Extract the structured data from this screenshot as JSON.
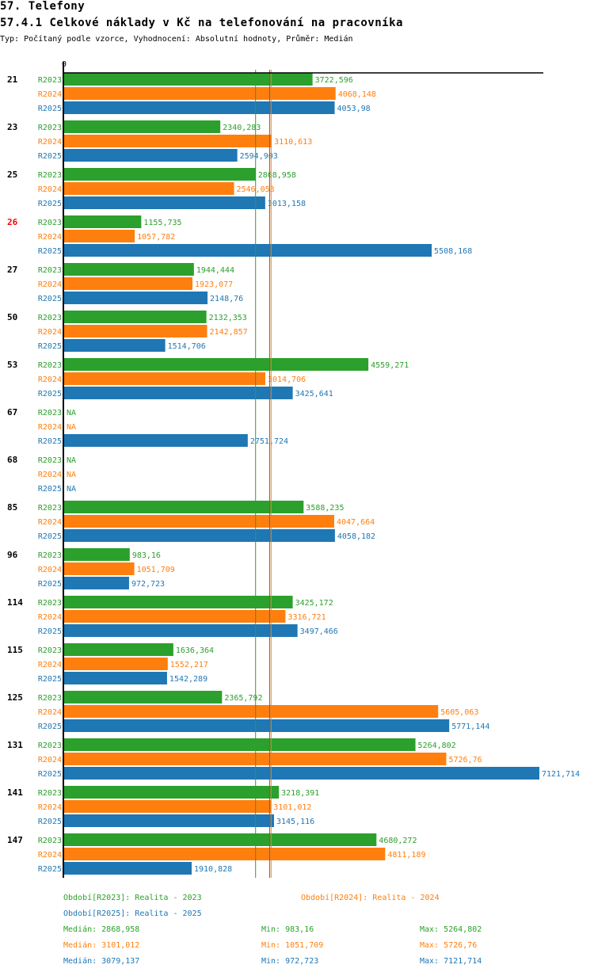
{
  "header": {
    "section": "57. Telefony",
    "title": "57.4.1 Celkové náklady v Kč na telefonování na pracovníka",
    "subtitle": "Typ: Počítaný podle vzorce, Vyhodnocení: Absolutní hodnoty, Průměr: Medián"
  },
  "chart_data": {
    "type": "bar",
    "orientation": "horizontal",
    "title": "57.4.1 Celkové náklady v Kč na telefonování na pracovníka",
    "xlabel": "",
    "ylabel": "",
    "x_tick_labels": [
      "0"
    ],
    "xlim": [
      0,
      7121.714
    ],
    "grid": false,
    "legend_position": "bottom",
    "series_colors": {
      "R2023": "#2ca02c",
      "R2024": "#ff7f0e",
      "R2025": "#1f77b4"
    },
    "series_names": [
      "R2023",
      "R2024",
      "R2025"
    ],
    "categories": [
      {
        "label": "21",
        "highlight": false,
        "values": {
          "R2023": 3722.596,
          "R2024": 4068.148,
          "R2025": 4053.98
        },
        "labels": {
          "R2023": "3722,596",
          "R2024": "4068,148",
          "R2025": "4053,98"
        }
      },
      {
        "label": "23",
        "highlight": false,
        "values": {
          "R2023": 2340.283,
          "R2024": 3110.613,
          "R2025": 2594.903
        },
        "labels": {
          "R2023": "2340,283",
          "R2024": "3110,613",
          "R2025": "2594,903"
        }
      },
      {
        "label": "25",
        "highlight": false,
        "values": {
          "R2023": 2868.958,
          "R2024": 2546.053,
          "R2025": 3013.158
        },
        "labels": {
          "R2023": "2868,958",
          "R2024": "2546,053",
          "R2025": "3013,158"
        }
      },
      {
        "label": "26",
        "highlight": true,
        "values": {
          "R2023": 1155.735,
          "R2024": 1057.782,
          "R2025": 5508.168
        },
        "labels": {
          "R2023": "1155,735",
          "R2024": "1057,782",
          "R2025": "5508,168"
        }
      },
      {
        "label": "27",
        "highlight": false,
        "values": {
          "R2023": 1944.444,
          "R2024": 1923.077,
          "R2025": 2148.76
        },
        "labels": {
          "R2023": "1944,444",
          "R2024": "1923,077",
          "R2025": "2148,76"
        }
      },
      {
        "label": "50",
        "highlight": false,
        "values": {
          "R2023": 2132.353,
          "R2024": 2142.857,
          "R2025": 1514.706
        },
        "labels": {
          "R2023": "2132,353",
          "R2024": "2142,857",
          "R2025": "1514,706"
        }
      },
      {
        "label": "53",
        "highlight": false,
        "values": {
          "R2023": 4559.271,
          "R2024": 3014.706,
          "R2025": 3425.641
        },
        "labels": {
          "R2023": "4559,271",
          "R2024": "3014,706",
          "R2025": "3425,641"
        }
      },
      {
        "label": "67",
        "highlight": false,
        "values": {
          "R2023": null,
          "R2024": null,
          "R2025": 2751.724
        },
        "labels": {
          "R2023": "NA",
          "R2024": "NA",
          "R2025": "2751,724"
        }
      },
      {
        "label": "68",
        "highlight": false,
        "values": {
          "R2023": null,
          "R2024": null,
          "R2025": null
        },
        "labels": {
          "R2023": "NA",
          "R2024": "NA",
          "R2025": "NA"
        }
      },
      {
        "label": "85",
        "highlight": false,
        "values": {
          "R2023": 3588.235,
          "R2024": 4047.664,
          "R2025": 4058.182
        },
        "labels": {
          "R2023": "3588,235",
          "R2024": "4047,664",
          "R2025": "4058,182"
        }
      },
      {
        "label": "96",
        "highlight": false,
        "values": {
          "R2023": 983.16,
          "R2024": 1051.709,
          "R2025": 972.723
        },
        "labels": {
          "R2023": "983,16",
          "R2024": "1051,709",
          "R2025": "972,723"
        }
      },
      {
        "label": "114",
        "highlight": false,
        "values": {
          "R2023": 3425.172,
          "R2024": 3316.721,
          "R2025": 3497.466
        },
        "labels": {
          "R2023": "3425,172",
          "R2024": "3316,721",
          "R2025": "3497,466"
        }
      },
      {
        "label": "115",
        "highlight": false,
        "values": {
          "R2023": 1636.364,
          "R2024": 1552.217,
          "R2025": 1542.289
        },
        "labels": {
          "R2023": "1636,364",
          "R2024": "1552,217",
          "R2025": "1542,289"
        }
      },
      {
        "label": "125",
        "highlight": false,
        "values": {
          "R2023": 2365.792,
          "R2024": 5605.063,
          "R2025": 5771.144
        },
        "labels": {
          "R2023": "2365,792",
          "R2024": "5605,063",
          "R2025": "5771,144"
        }
      },
      {
        "label": "131",
        "highlight": false,
        "values": {
          "R2023": 5264.802,
          "R2024": 5726.76,
          "R2025": 7121.714
        },
        "labels": {
          "R2023": "5264,802",
          "R2024": "5726,76",
          "R2025": "7121,714"
        }
      },
      {
        "label": "141",
        "highlight": false,
        "values": {
          "R2023": 3218.391,
          "R2024": 3101.012,
          "R2025": 3145.116
        },
        "labels": {
          "R2023": "3218,391",
          "R2024": "3101,012",
          "R2025": "3145,116"
        }
      },
      {
        "label": "147",
        "highlight": false,
        "values": {
          "R2023": 4680.272,
          "R2024": 4811.189,
          "R2025": 1910.828
        },
        "labels": {
          "R2023": "4680,272",
          "R2024": "4811,189",
          "R2025": "1910,828"
        }
      }
    ],
    "median_lines": {
      "R2023": 2868.958,
      "R2024": 3101.012,
      "R2025": 3079.137
    },
    "highlight_color": "#ff0000"
  },
  "legend": {
    "periods": [
      {
        "series": "R2023",
        "text": "Období[R2023]: Realita - 2023"
      },
      {
        "series": "R2024",
        "text": "Období[R2024]: Realita - 2024"
      },
      {
        "series": "R2025",
        "text": "Období[R2025]: Realita - 2025"
      }
    ],
    "stats": [
      {
        "series": "R2023",
        "median": "Medián: 2868,958",
        "min": "Min: 983,16",
        "max": "Max: 5264,802"
      },
      {
        "series": "R2024",
        "median": "Medián: 3101,012",
        "min": "Min: 1051,709",
        "max": "Max: 5726,76"
      },
      {
        "series": "R2025",
        "median": "Medián: 3079,137",
        "min": "Min: 972,723",
        "max": "Max: 7121,714"
      }
    ]
  }
}
